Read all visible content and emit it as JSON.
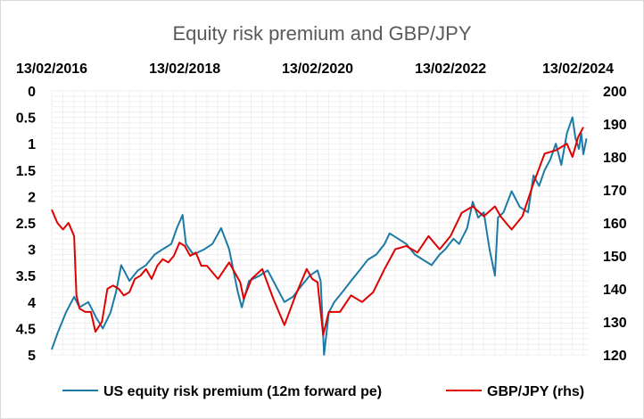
{
  "chart_data": {
    "type": "line",
    "title": "Equity risk premium and GBP/JPY",
    "x_tick_labels": [
      "13/02/2016",
      "13/02/2018",
      "13/02/2020",
      "13/02/2022",
      "13/02/2024"
    ],
    "x_range": [
      "2016-02-13",
      "2024-02-13"
    ],
    "left_axis": {
      "ticks": [
        "0",
        "0.5",
        "1",
        "1.5",
        "2",
        "2.5",
        "3",
        "3.5",
        "4",
        "4.5",
        "5"
      ],
      "range": [
        0,
        5
      ],
      "inverted": true
    },
    "right_axis": {
      "ticks": [
        "200",
        "190",
        "180",
        "170",
        "160",
        "150",
        "140",
        "130",
        "120"
      ],
      "range": [
        120,
        200
      ]
    },
    "grid": true,
    "legend_position": "bottom",
    "series": [
      {
        "name": "US equity risk premium (12m forward pe)",
        "axis": "left",
        "color": "#1b7aa6",
        "points": [
          [
            "2016-02-13",
            4.9
          ],
          [
            "2016-03-15",
            4.6
          ],
          [
            "2016-05-01",
            4.2
          ],
          [
            "2016-06-15",
            3.9
          ],
          [
            "2016-07-15",
            4.1
          ],
          [
            "2016-09-01",
            4.0
          ],
          [
            "2016-10-15",
            4.3
          ],
          [
            "2016-11-20",
            4.5
          ],
          [
            "2017-01-01",
            4.2
          ],
          [
            "2017-02-01",
            3.8
          ],
          [
            "2017-03-01",
            3.3
          ],
          [
            "2017-04-15",
            3.6
          ],
          [
            "2017-06-01",
            3.4
          ],
          [
            "2017-07-15",
            3.3
          ],
          [
            "2017-09-01",
            3.1
          ],
          [
            "2017-10-15",
            3.0
          ],
          [
            "2017-12-01",
            2.9
          ],
          [
            "2018-01-01",
            2.6
          ],
          [
            "2018-02-01",
            2.35
          ],
          [
            "2018-02-20",
            2.9
          ],
          [
            "2018-04-01",
            3.1
          ],
          [
            "2018-06-01",
            3.0
          ],
          [
            "2018-07-15",
            2.9
          ],
          [
            "2018-09-01",
            2.6
          ],
          [
            "2018-10-15",
            3.0
          ],
          [
            "2018-12-01",
            3.8
          ],
          [
            "2018-12-24",
            4.1
          ],
          [
            "2019-02-01",
            3.6
          ],
          [
            "2019-04-01",
            3.5
          ],
          [
            "2019-05-15",
            3.4
          ],
          [
            "2019-06-15",
            3.6
          ],
          [
            "2019-08-15",
            4.0
          ],
          [
            "2019-10-01",
            3.9
          ],
          [
            "2019-11-15",
            3.7
          ],
          [
            "2020-01-01",
            3.5
          ],
          [
            "2020-02-13",
            3.4
          ],
          [
            "2020-03-01",
            3.6
          ],
          [
            "2020-03-20",
            5.0
          ],
          [
            "2020-04-15",
            4.2
          ],
          [
            "2020-05-15",
            4.0
          ],
          [
            "2020-07-01",
            3.8
          ],
          [
            "2020-08-15",
            3.6
          ],
          [
            "2020-10-01",
            3.4
          ],
          [
            "2020-11-15",
            3.2
          ],
          [
            "2021-01-01",
            3.1
          ],
          [
            "2021-02-15",
            2.9
          ],
          [
            "2021-03-15",
            2.7
          ],
          [
            "2021-05-01",
            2.8
          ],
          [
            "2021-06-15",
            2.9
          ],
          [
            "2021-08-01",
            3.1
          ],
          [
            "2021-09-15",
            3.2
          ],
          [
            "2021-11-01",
            3.3
          ],
          [
            "2021-12-15",
            3.1
          ],
          [
            "2022-01-15",
            3.0
          ],
          [
            "2022-03-01",
            2.8
          ],
          [
            "2022-04-01",
            2.9
          ],
          [
            "2022-05-15",
            2.6
          ],
          [
            "2022-06-15",
            2.1
          ],
          [
            "2022-07-15",
            2.4
          ],
          [
            "2022-08-15",
            2.3
          ],
          [
            "2022-09-15",
            3.0
          ],
          [
            "2022-10-15",
            3.5
          ],
          [
            "2022-11-01",
            2.4
          ],
          [
            "2022-12-01",
            2.3
          ],
          [
            "2023-01-15",
            1.9
          ],
          [
            "2023-03-01",
            2.2
          ],
          [
            "2023-04-15",
            2.3
          ],
          [
            "2023-05-15",
            1.6
          ],
          [
            "2023-06-15",
            1.8
          ],
          [
            "2023-07-15",
            1.5
          ],
          [
            "2023-08-15",
            1.3
          ],
          [
            "2023-09-15",
            1.0
          ],
          [
            "2023-10-15",
            1.4
          ],
          [
            "2023-11-15",
            0.8
          ],
          [
            "2023-12-15",
            0.5
          ],
          [
            "2024-01-01",
            0.9
          ],
          [
            "2024-01-20",
            1.1
          ],
          [
            "2024-02-01",
            0.8
          ],
          [
            "2024-02-13",
            1.2
          ],
          [
            "2024-03-01",
            0.9
          ]
        ]
      },
      {
        "name": "GBP/JPY (rhs)",
        "axis": "right",
        "color": "#e00000",
        "points": [
          [
            "2016-02-13",
            164
          ],
          [
            "2016-03-15",
            160
          ],
          [
            "2016-04-15",
            158
          ],
          [
            "2016-05-15",
            160
          ],
          [
            "2016-06-15",
            156
          ],
          [
            "2016-06-28",
            138
          ],
          [
            "2016-07-15",
            134
          ],
          [
            "2016-08-15",
            133
          ],
          [
            "2016-09-15",
            133
          ],
          [
            "2016-10-10",
            127
          ],
          [
            "2016-11-15",
            130
          ],
          [
            "2016-12-15",
            140
          ],
          [
            "2017-01-15",
            141
          ],
          [
            "2017-02-15",
            140
          ],
          [
            "2017-03-15",
            138
          ],
          [
            "2017-04-15",
            139
          ],
          [
            "2017-05-15",
            143
          ],
          [
            "2017-06-15",
            144
          ],
          [
            "2017-07-15",
            146
          ],
          [
            "2017-08-15",
            143
          ],
          [
            "2017-09-15",
            147
          ],
          [
            "2017-10-15",
            149
          ],
          [
            "2017-11-15",
            148
          ],
          [
            "2017-12-15",
            150
          ],
          [
            "2018-01-15",
            154
          ],
          [
            "2018-02-13",
            153
          ],
          [
            "2018-03-15",
            150
          ],
          [
            "2018-04-15",
            151
          ],
          [
            "2018-05-15",
            147
          ],
          [
            "2018-06-15",
            147
          ],
          [
            "2018-08-15",
            143
          ],
          [
            "2018-10-15",
            148
          ],
          [
            "2018-12-15",
            142
          ],
          [
            "2019-01-03",
            137
          ],
          [
            "2019-02-15",
            143
          ],
          [
            "2019-04-15",
            146
          ],
          [
            "2019-06-15",
            137
          ],
          [
            "2019-08-15",
            129
          ],
          [
            "2019-10-15",
            138
          ],
          [
            "2019-12-15",
            146
          ],
          [
            "2020-01-15",
            143
          ],
          [
            "2020-02-13",
            142
          ],
          [
            "2020-03-15",
            126
          ],
          [
            "2020-04-15",
            133
          ],
          [
            "2020-06-15",
            133
          ],
          [
            "2020-08-15",
            138
          ],
          [
            "2020-10-15",
            136
          ],
          [
            "2020-12-15",
            139
          ],
          [
            "2021-02-15",
            146
          ],
          [
            "2021-04-15",
            152
          ],
          [
            "2021-06-15",
            153
          ],
          [
            "2021-08-15",
            151
          ],
          [
            "2021-10-15",
            156
          ],
          [
            "2021-12-15",
            152
          ],
          [
            "2022-02-13",
            156
          ],
          [
            "2022-04-15",
            163
          ],
          [
            "2022-06-15",
            165
          ],
          [
            "2022-08-15",
            162
          ],
          [
            "2022-10-15",
            165
          ],
          [
            "2022-11-15",
            162
          ],
          [
            "2022-12-15",
            160
          ],
          [
            "2023-01-15",
            158
          ],
          [
            "2023-03-15",
            162
          ],
          [
            "2023-05-15",
            172
          ],
          [
            "2023-07-15",
            181
          ],
          [
            "2023-09-15",
            182
          ],
          [
            "2023-11-15",
            184
          ],
          [
            "2023-12-15",
            180
          ],
          [
            "2024-01-15",
            186
          ],
          [
            "2024-02-13",
            189
          ]
        ]
      }
    ]
  }
}
